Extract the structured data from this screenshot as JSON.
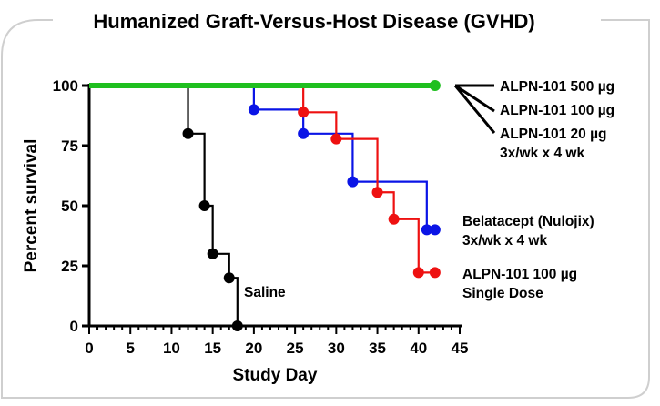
{
  "chart_data": {
    "type": "line",
    "subtype": "kaplan-meier-step",
    "title": "Humanized Graft-Versus-Host Disease (GVHD)",
    "title_color": "#2a6a78",
    "xlabel": "Study Day",
    "ylabel": "Percent survival",
    "xlim": [
      0,
      45
    ],
    "ylim": [
      0,
      100
    ],
    "xticks": [
      "0",
      "5",
      "10",
      "15",
      "20",
      "25",
      "30",
      "35",
      "40",
      "45"
    ],
    "yticks": [
      "0",
      "25",
      "50",
      "75",
      "100"
    ],
    "grid": false,
    "series": [
      {
        "name": "ALPN-101 500 µg / ALPN-101 100 µg / ALPN-101 20 µg 3x/wk x 4 wk",
        "color": "#1fbf1f",
        "x": [
          0,
          42
        ],
        "y": [
          100,
          100
        ],
        "markers_x": [
          42
        ],
        "markers_y": [
          100
        ]
      },
      {
        "name": "Belatacept (Nulojix) 3x/wk x 4 wk",
        "color": "#0a14e6",
        "x": [
          0,
          20,
          26,
          32,
          41,
          42
        ],
        "y": [
          100,
          90,
          80,
          60,
          40,
          40
        ],
        "markers_x": [
          20,
          26,
          32,
          41,
          42
        ],
        "markers_y": [
          90,
          80,
          60,
          40,
          40
        ]
      },
      {
        "name": "ALPN-101 100 µg Single Dose",
        "color": "#ee1111",
        "x": [
          0,
          26,
          30,
          35,
          37,
          40,
          42
        ],
        "y": [
          100,
          88.9,
          77.8,
          55.6,
          44.4,
          22.2,
          22.2
        ],
        "markers_x": [
          26,
          30,
          35,
          37,
          40,
          42
        ],
        "markers_y": [
          88.9,
          77.8,
          55.6,
          44.4,
          22.2,
          22.2
        ]
      },
      {
        "name": "Saline",
        "color": "#000000",
        "x": [
          0,
          12,
          14,
          15,
          17,
          18
        ],
        "y": [
          100,
          80,
          50,
          30,
          20,
          0
        ],
        "markers_x": [
          12,
          14,
          15,
          17,
          18
        ],
        "markers_y": [
          80,
          50,
          30,
          20,
          0
        ]
      }
    ],
    "legend": {
      "group_lines": [
        "ALPN-101 500 µg",
        "ALPN-101 100 µg",
        "ALPN-101 20 µg",
        "3x/wk x 4 wk"
      ],
      "belatacept_lines": [
        "Belatacept (Nulojix)",
        "3x/wk x 4 wk"
      ],
      "single_dose_lines": [
        "ALPN-101 100 µg",
        "Single Dose"
      ],
      "saline": "Saline"
    }
  }
}
